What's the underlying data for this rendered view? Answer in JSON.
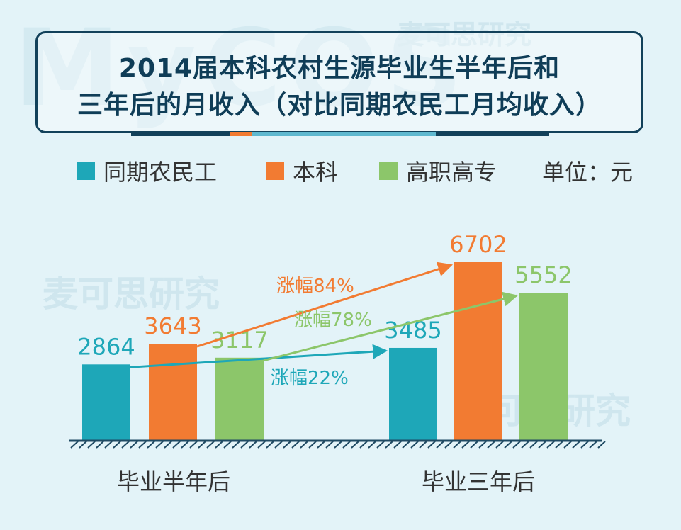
{
  "title": {
    "line1": "2014届本科农村生源毕业生半年后和",
    "line2": "三年后的月收入（对比同期农民工月均收入）"
  },
  "watermark": {
    "brand_latin": "MyCOS",
    "brand_cn": "麦可思研究"
  },
  "legend": {
    "items": [
      {
        "label": "同期农民工",
        "color": "#1ea7b8"
      },
      {
        "label": "本科",
        "color": "#f27b32"
      },
      {
        "label": "高职高专",
        "color": "#8cc66a"
      }
    ],
    "unit": "单位：元"
  },
  "colors": {
    "title": "#0f3d57",
    "background": "#e3f3f8",
    "ground": "#1f4a63"
  },
  "chart_data": {
    "type": "bar",
    "categories": [
      "毕业半年后",
      "毕业三年后"
    ],
    "series": [
      {
        "name": "同期农民工",
        "values": [
          2864,
          3485
        ],
        "color": "#1ea7b8"
      },
      {
        "name": "本科",
        "values": [
          3643,
          6702
        ],
        "color": "#f27b32"
      },
      {
        "name": "高职高专",
        "values": [
          3117,
          5552
        ],
        "color": "#8cc66a"
      }
    ],
    "ylim": [
      0,
      7000
    ],
    "annotations": [
      {
        "text": "涨幅84%",
        "series": "本科",
        "color": "#f27b32"
      },
      {
        "text": "涨幅78%",
        "series": "高职高专",
        "color": "#8cc66a"
      },
      {
        "text": "涨幅22%",
        "series": "同期农民工",
        "color": "#1ea7b8"
      }
    ]
  }
}
